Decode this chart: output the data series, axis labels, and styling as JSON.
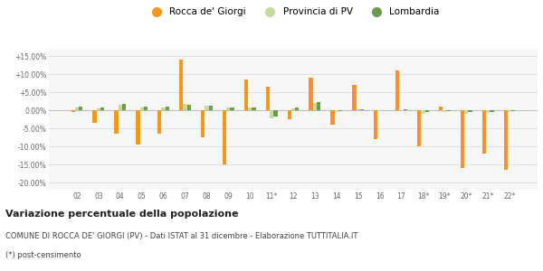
{
  "categories": [
    "02",
    "03",
    "04",
    "05",
    "06",
    "07",
    "08",
    "09",
    "10",
    "11*",
    "12",
    "13",
    "14",
    "15",
    "16",
    "17",
    "18*",
    "19*",
    "20*",
    "21*",
    "22*"
  ],
  "rocca": [
    -0.5,
    -3.5,
    -6.5,
    -9.5,
    -6.5,
    14.0,
    -7.5,
    -15.0,
    8.5,
    6.5,
    -2.5,
    9.0,
    -4.0,
    7.0,
    -8.0,
    11.0,
    -10.0,
    1.0,
    -16.0,
    -12.0,
    -16.5
  ],
  "provincia": [
    0.8,
    0.5,
    1.5,
    0.8,
    0.8,
    1.8,
    1.3,
    0.7,
    0.7,
    -2.2,
    0.5,
    2.0,
    -0.5,
    0.2,
    -0.2,
    0.0,
    -1.0,
    -0.5,
    -1.0,
    -0.8,
    -0.5
  ],
  "lombardia": [
    1.0,
    0.8,
    1.7,
    1.0,
    1.0,
    1.5,
    1.3,
    0.8,
    0.8,
    -1.8,
    0.8,
    2.2,
    -0.2,
    0.3,
    -0.1,
    0.2,
    -0.5,
    -0.2,
    -0.5,
    -0.5,
    -0.3
  ],
  "rocca_color": "#f5961e",
  "provincia_color": "#c8d9a0",
  "lombardia_color": "#6d9950",
  "bg_color": "#f7f7f7",
  "grid_color": "#e0e0e0",
  "ylim_min": -22,
  "ylim_max": 17,
  "yticks": [
    -20,
    -15,
    -10,
    -5,
    0,
    5,
    10,
    15
  ],
  "ytick_labels": [
    "-20.00%",
    "-15.00%",
    "-10.00%",
    "-5.00%",
    "0.00%",
    "+5.00%",
    "+10.00%",
    "+15.00%"
  ],
  "title_bold": "Variazione percentuale della popolazione",
  "subtitle": "COMUNE DI ROCCA DE' GIORGI (PV) - Dati ISTAT al 31 dicembre - Elaborazione TUTTITALIA.IT",
  "footnote": "(*) post-censimento",
  "legend_rocca": "Rocca de' Giorgi",
  "legend_provincia": "Provincia di PV",
  "legend_lombardia": "Lombardia"
}
